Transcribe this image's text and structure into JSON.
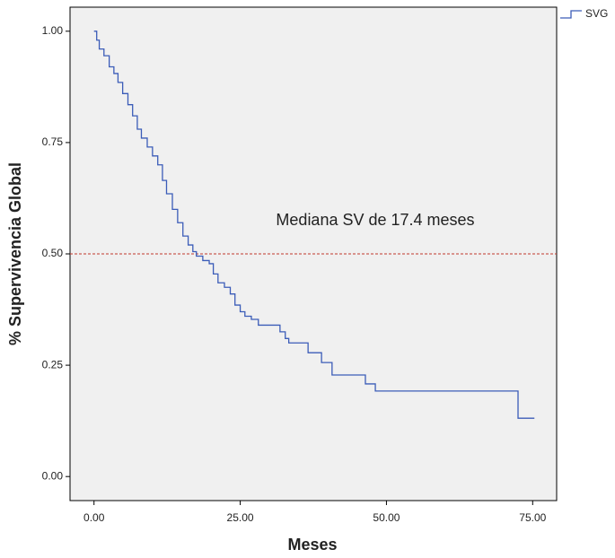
{
  "chart_data": {
    "type": "step",
    "x_label": "Meses",
    "y_label": "% Supervivencia Global",
    "annotation": "Mediana SV de 17.4 meses",
    "hline": 0.5,
    "hline_color": "#c0392b",
    "plot_background": "#f0f0f0",
    "xlim": [
      -4.1,
      79.1
    ],
    "ylim": [
      -0.054,
      1.054
    ],
    "xticks": [
      {
        "value": 0,
        "label": "0.00"
      },
      {
        "value": 25,
        "label": "25.00"
      },
      {
        "value": 50,
        "label": "50.00"
      },
      {
        "value": 75,
        "label": "75.00"
      }
    ],
    "yticks": [
      {
        "value": 0,
        "label": "0.00"
      },
      {
        "value": 0.25,
        "label": "0.25"
      },
      {
        "value": 0.5,
        "label": "0.50"
      },
      {
        "value": 0.75,
        "label": "0.75"
      },
      {
        "value": 1,
        "label": "1.00"
      }
    ],
    "series": [
      {
        "name": "SVG",
        "color": "#3b5cb8",
        "x": [
          0,
          0.46,
          0.9,
          1.7,
          2.6,
          3.4,
          4.1,
          4.9,
          5.8,
          6.6,
          7.4,
          8.1,
          9.1,
          10.0,
          10.9,
          11.7,
          12.4,
          13.4,
          14.3,
          15.2,
          16.1,
          16.9,
          17.5,
          18.6,
          19.7,
          20.4,
          21.2,
          22.3,
          23.3,
          24.1,
          25.0,
          25.8,
          26.9,
          28.1,
          31.8,
          32.7,
          33.3,
          36.6,
          38.9,
          40.7,
          46.4,
          48.1,
          72.5,
          75.3
        ],
        "values": [
          1.0,
          0.98,
          0.96,
          0.945,
          0.92,
          0.905,
          0.885,
          0.86,
          0.835,
          0.81,
          0.78,
          0.76,
          0.74,
          0.72,
          0.7,
          0.665,
          0.635,
          0.6,
          0.57,
          0.54,
          0.52,
          0.505,
          0.495,
          0.485,
          0.478,
          0.455,
          0.435,
          0.425,
          0.41,
          0.385,
          0.37,
          0.36,
          0.353,
          0.34,
          0.325,
          0.31,
          0.3,
          0.278,
          0.256,
          0.228,
          0.208,
          0.192,
          0.131,
          0.131
        ]
      }
    ]
  }
}
